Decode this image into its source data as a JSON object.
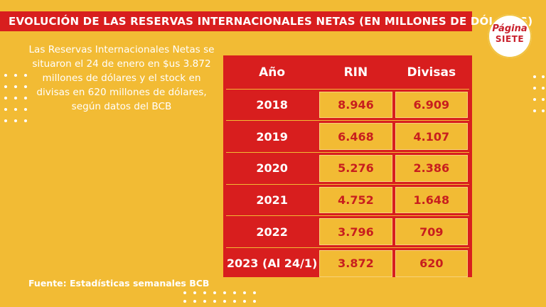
{
  "title": "EVOLUCIÓN DE LAS RESERVAS INTERNACIONALES NETAS  (EN MILLONES DE DÓLARES)",
  "logo": {
    "line1": "Página",
    "line2": "SIETE"
  },
  "intro_text": "Las Reservas Internacionales Netas se situaron el 24 de enero en $us 3.872 millones de dólares y el stock en divisas en 620 millones de dólares, según datos del BCB",
  "source": "Fuente: Estadísticas semanales BCB",
  "colors": {
    "background": "#F2BB34",
    "accent": "#D81E1E",
    "text_on_yellow": "#C81E1E"
  },
  "chart_data": {
    "type": "table",
    "columns": [
      "Año",
      "RIN",
      "Divisas"
    ],
    "rows": [
      [
        "2018",
        "8.946",
        "6.909"
      ],
      [
        "2019",
        "6.468",
        "4.107"
      ],
      [
        "2020",
        "5.276",
        "2.386"
      ],
      [
        "2021",
        "4.752",
        "1.648"
      ],
      [
        "2022",
        "3.796",
        "709"
      ],
      [
        "2023 (Al 24/1)",
        "3.872",
        "620"
      ]
    ]
  }
}
